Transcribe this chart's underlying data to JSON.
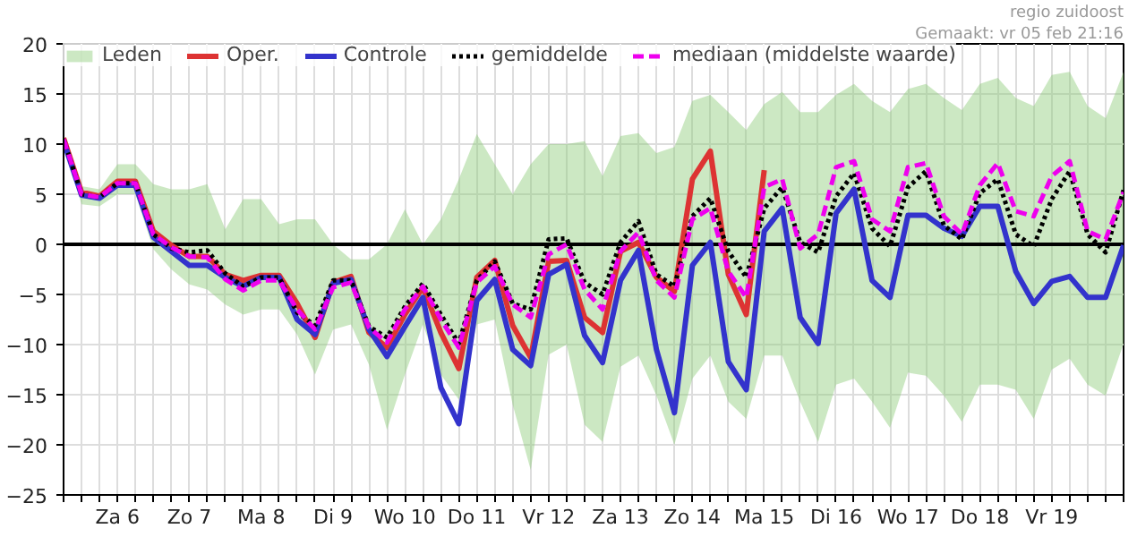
{
  "chart_data": {
    "type": "line",
    "categories": [
      null,
      null,
      null,
      "Za 6",
      null,
      null,
      null,
      "Zo 7",
      null,
      null,
      null,
      "Ma 8",
      null,
      null,
      null,
      "Di 9",
      null,
      null,
      null,
      "Wo 10",
      null,
      null,
      null,
      "Do 11",
      null,
      null,
      null,
      "Vr 12",
      null,
      null,
      null,
      "Za 13",
      null,
      null,
      null,
      "Zo 14",
      null,
      null,
      null,
      "Ma 15",
      null,
      null,
      null,
      "Di 16",
      null,
      null,
      null,
      "Wo 17",
      null,
      null,
      null,
      "Do 18",
      null,
      null,
      null,
      "Vr 19",
      null,
      null,
      null,
      null
    ],
    "series": [
      {
        "name": "Leden",
        "color": "#8fcc7a",
        "values": [
          null,
          null,
          null,
          null,
          null,
          null,
          null,
          null,
          null,
          null,
          null,
          null,
          null,
          null,
          null,
          null,
          null,
          null,
          null,
          null,
          null,
          null,
          null,
          null,
          null,
          null,
          null,
          null,
          null,
          null,
          null,
          null,
          null,
          null,
          null,
          null,
          null,
          null,
          null,
          null,
          null,
          null,
          null,
          null,
          null,
          null,
          null,
          null,
          null,
          null,
          null,
          null,
          null,
          null,
          null,
          null,
          null,
          null,
          null,
          null
        ],
        "lower": [
          10,
          4,
          3.8,
          5,
          5,
          -0.5,
          -2.5,
          -4,
          -4.5,
          -6,
          -7,
          -6.5,
          -6.5,
          -9,
          -13,
          -8.5,
          -8,
          -12,
          -18.5,
          -13,
          -8,
          -13,
          -15.5,
          -8,
          -7.5,
          -16,
          -22.5,
          -11,
          -10,
          -18,
          -19.7,
          -12.2,
          -11.1,
          -15.1,
          -20,
          -13.4,
          -11.1,
          -15.7,
          -17.4,
          -11.1,
          -11.1,
          -15.7,
          -19.7,
          -14,
          -13.4,
          -15.7,
          -18.3,
          -12.8,
          -13.1,
          -15.1,
          -17.7,
          -14,
          -14,
          -14.5,
          -17.4,
          -12.5,
          -11.4,
          -14,
          -15.1,
          -9.9
        ],
        "upper": [
          10.8,
          5.8,
          5.5,
          8,
          8,
          6,
          5.5,
          5.5,
          6,
          1.5,
          4.5,
          4.5,
          2,
          2.5,
          2.5,
          0,
          -1.5,
          -1.5,
          0,
          3.5,
          0,
          2.5,
          6.5,
          11,
          8,
          5,
          8,
          10,
          10,
          10.3,
          6.8,
          10.8,
          11.1,
          9.1,
          9.7,
          14.3,
          14.9,
          13.2,
          11.4,
          14,
          15.2,
          13.2,
          13.2,
          14.9,
          16,
          14.3,
          13.2,
          15.5,
          16,
          14.6,
          13.4,
          16,
          16.6,
          14.6,
          13.8,
          16.9,
          17.2,
          13.8,
          12.6,
          17.2
        ]
      },
      {
        "name": "Oper.",
        "color": "#dd3333",
        "values": [
          10.6,
          5.2,
          4.8,
          6.3,
          6.3,
          1.3,
          -0.1,
          -1.2,
          -1.2,
          -3,
          -3.6,
          -3.1,
          -3.1,
          -5.9,
          -9.3,
          -3.8,
          -3.2,
          -8.8,
          -10.3,
          -7,
          -4.3,
          -8.8,
          -12.4,
          -3.3,
          -1.6,
          -8.1,
          -11.3,
          -1.7,
          -1.6,
          -7.3,
          -8.8,
          -0.7,
          0.2,
          -3.3,
          -4.7,
          6.5,
          9.3,
          -3,
          -7,
          7.4,
          null,
          null,
          null,
          null,
          null,
          null,
          null,
          null,
          null,
          null,
          null,
          null,
          null,
          null,
          null,
          null,
          null,
          null,
          null,
          null
        ]
      },
      {
        "name": "Controle",
        "color": "#3333cc",
        "values": [
          10.3,
          4.9,
          4.6,
          5.9,
          5.9,
          0.7,
          -0.7,
          -2.1,
          -2.1,
          -3.3,
          -4.2,
          -3.3,
          -3.3,
          -7.5,
          -9,
          -3.9,
          -3.5,
          -8.5,
          -11.2,
          -8.2,
          -5.3,
          -14.3,
          -17.9,
          -5.6,
          -3.5,
          -10.5,
          -12.1,
          -3,
          -2,
          -9.1,
          -11.8,
          -3.6,
          -0.6,
          -10.5,
          -16.8,
          -2.1,
          0.2,
          -11.7,
          -14.5,
          1.3,
          3.6,
          -7.3,
          -9.9,
          3.1,
          5.5,
          -3.6,
          -5.3,
          2.9,
          2.9,
          1.6,
          0.8,
          3.8,
          3.8,
          -2.7,
          -5.9,
          -3.7,
          -3.2,
          -5.3,
          -5.3,
          -0.1
        ]
      },
      {
        "name": "gemiddelde",
        "color": "#000000",
        "line_style": "dotted",
        "values": [
          10.5,
          5,
          4.7,
          6.1,
          6.1,
          1,
          -0.4,
          -0.8,
          -0.6,
          -2.9,
          -4.2,
          -3.3,
          -3.3,
          -6.8,
          -8.1,
          -3.6,
          -3.6,
          -8.2,
          -9.3,
          -6.2,
          -3.9,
          -7,
          -9.9,
          -3.6,
          -1.7,
          -5.9,
          -6.5,
          0.5,
          0.6,
          -3.8,
          -5,
          0.2,
          2.3,
          -3,
          -4.2,
          2.8,
          4.6,
          -0.7,
          -3.3,
          3.6,
          5.7,
          0.2,
          -0.8,
          4.8,
          7.1,
          1.6,
          -0.2,
          5.7,
          7.3,
          1.9,
          0.5,
          5.1,
          6.5,
          1,
          -0.2,
          4.5,
          7.3,
          1,
          -0.8,
          5.4
        ]
      },
      {
        "name": "mediaan (middelste waarde)",
        "color": "#ee00ee",
        "line_style": "dashed",
        "values": [
          10.5,
          5,
          4.7,
          6.1,
          6.1,
          1,
          -0.3,
          -1.2,
          -1.3,
          -3.5,
          -4.6,
          -3.6,
          -3.6,
          -6.5,
          -8.5,
          -4.3,
          -3.8,
          -8.3,
          -9.8,
          -6.5,
          -4.2,
          -7.5,
          -10.3,
          -3.8,
          -2.2,
          -6,
          -7.3,
          -1,
          0,
          -4.5,
          -6.5,
          -0.7,
          1.2,
          -3.6,
          -5.3,
          2.5,
          3.6,
          -2.7,
          -5.3,
          5.7,
          6.5,
          -0.4,
          1,
          7.7,
          8.3,
          2.5,
          1.3,
          7.7,
          8.1,
          2.8,
          1,
          5.9,
          8.1,
          3.3,
          2.8,
          6.8,
          8.3,
          1.3,
          0.5,
          5.2
        ]
      }
    ],
    "ylim": [
      -25,
      20
    ],
    "yticks": [
      -25,
      -20,
      -15,
      -10,
      -5,
      0,
      5,
      10,
      15,
      20
    ],
    "grid": true,
    "legend": "top",
    "ref_lines": [
      {
        "axis": "y",
        "value": 0,
        "color": "#000000"
      }
    ],
    "annotations": [
      "regio zuidoost",
      "Gemaakt: vr 05 feb 21:16"
    ]
  }
}
